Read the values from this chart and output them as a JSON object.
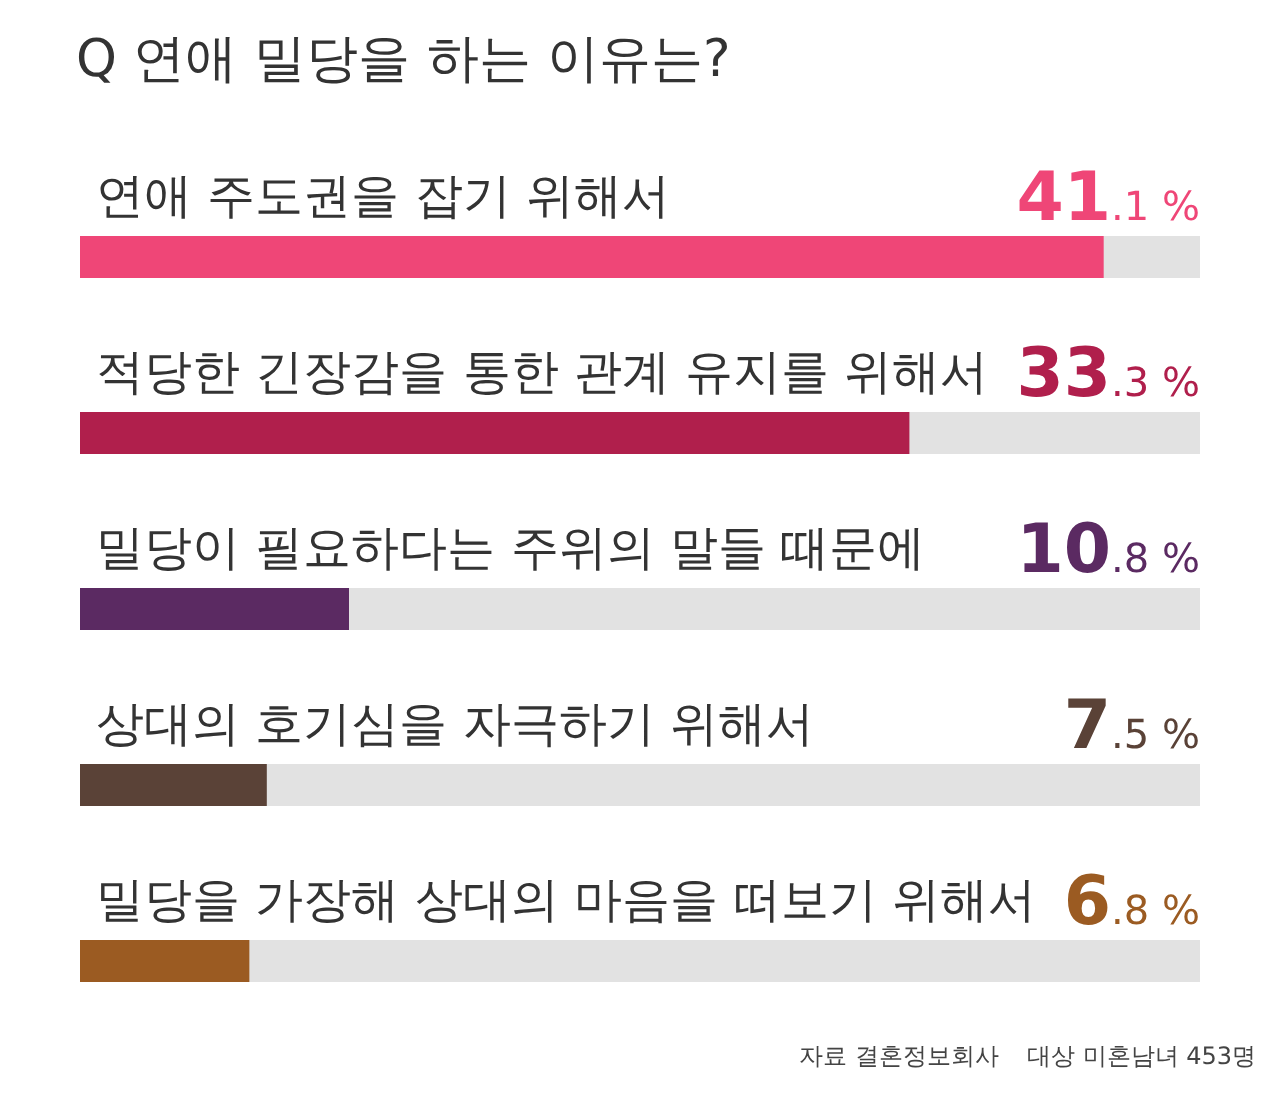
{
  "chart_data": {
    "type": "bar",
    "orientation": "horizontal",
    "title": "Q 연애 밀당을 하는 이유는?",
    "categories": [
      "연애 주도권을 잡기 위해서",
      "적당한 긴장감을 통한 관계 유지를 위해서",
      "밀당이 필요하다는 주위의 말들 때문에",
      "상대의 호기심을 자극하기 위해서",
      "밀당을 가장해 상대의 마음을 떠보기 위해서"
    ],
    "values": [
      41.1,
      33.3,
      10.8,
      7.5,
      6.8
    ],
    "colors": [
      "#ef4677",
      "#b01f4c",
      "#5b2a62",
      "#5a4237",
      "#9b5b22"
    ],
    "value_labels": [
      "41.1 %",
      "33.3 %",
      "10.8 %",
      "7.5 %",
      "6.8 %"
    ],
    "annotations": [
      "자료 결혼정보회사",
      "대상 미혼남녀 453명"
    ]
  }
}
